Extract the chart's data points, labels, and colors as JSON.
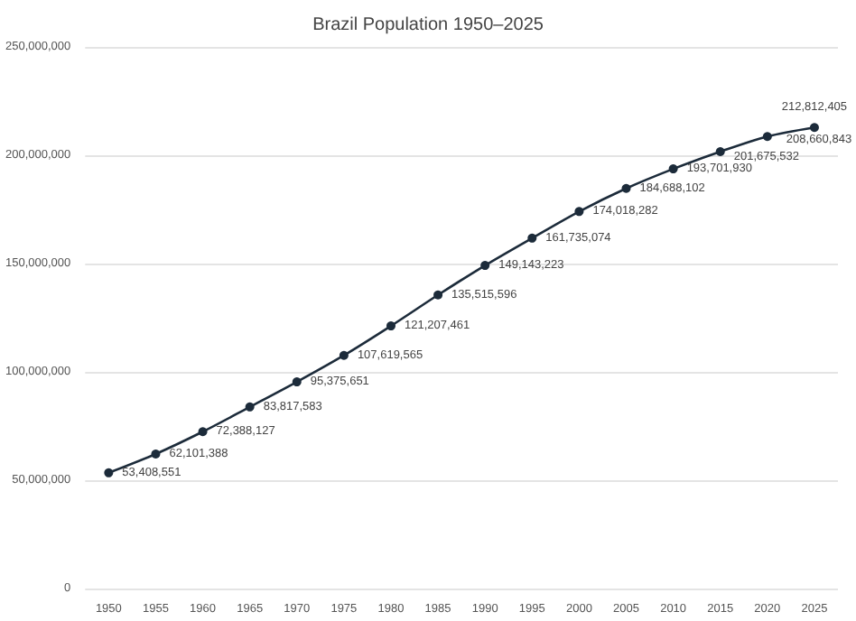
{
  "chart_data": {
    "type": "line",
    "title": "Brazil Population 1950–2025",
    "categories": [
      "1950",
      "1955",
      "1960",
      "1965",
      "1970",
      "1975",
      "1980",
      "1985",
      "1990",
      "1995",
      "2000",
      "2005",
      "2010",
      "2015",
      "2020",
      "2025"
    ],
    "series": [
      {
        "color": "#1c2b3a",
        "values": [
          53408551,
          62101388,
          72388127,
          83817583,
          95375651,
          107619565,
          121207461,
          135515596,
          149143223,
          161735074,
          174018282,
          184688102,
          193701930,
          201675532,
          208660843,
          212812405
        ],
        "value_labels": [
          "53,408,551",
          "62,101,388",
          "72,388,127",
          "83,817,583",
          "95,375,651",
          "107,619,565",
          "121,207,461",
          "135,515,596",
          "149,143,223",
          "161,735,074",
          "174,018,282",
          "184,688,102",
          "193,701,930",
          "201,675,532",
          "208,660,843",
          "212,812,405"
        ]
      }
    ],
    "ylim": [
      0,
      250000000
    ],
    "yticks": [
      0,
      {
        "value": 50000000,
        "label": "50,000,000"
      },
      {
        "value": 100000000,
        "label": "100,000,000"
      },
      {
        "value": 150000000,
        "label": "150,000,000"
      },
      {
        "value": 200000000,
        "label": "200,000,000"
      },
      {
        "value": 250000000,
        "label": "250,000,000"
      }
    ],
    "grid": "y",
    "marker": "circle",
    "line_style": "solid"
  }
}
